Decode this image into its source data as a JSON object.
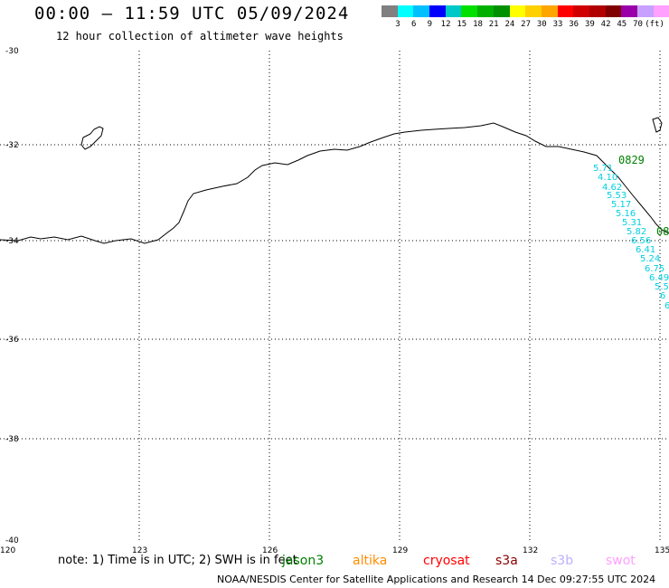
{
  "header": {
    "title": "00:00 – 11:59 UTC 05/09/2024",
    "subtitle": "12 hour collection of altimeter wave heights"
  },
  "colorbar": {
    "colors": [
      "#808080",
      "#00ffff",
      "#00bfff",
      "#0000ff",
      "#00c8c8",
      "#00e000",
      "#00b000",
      "#009000",
      "#ffff00",
      "#ffd000",
      "#ffa500",
      "#ff0000",
      "#d00000",
      "#b00000",
      "#800000",
      "#9900aa",
      "#c8a0ff",
      "#ffa0ff",
      "#000000"
    ],
    "labels": [
      "3",
      "6",
      "9",
      "12",
      "15",
      "18",
      "21",
      "24",
      "27",
      "30",
      "33",
      "36",
      "39",
      "42",
      "45",
      "70",
      "(ft)"
    ]
  },
  "axes": {
    "y_ticks": [
      "-30",
      "-32",
      "-34",
      "-36",
      "-38",
      "-40"
    ],
    "x_ticks": [
      "120",
      "123",
      "126",
      "129",
      "132",
      "135"
    ]
  },
  "track": {
    "time_labels": [
      "0829",
      "08"
    ],
    "values": [
      "5.71",
      "4.10",
      "4.62",
      "5.53",
      "5.17",
      "5.16",
      "5.31",
      "5.82",
      "6.56",
      "6.41",
      "5.24",
      "6.75",
      "6.49",
      "5.5",
      "6",
      "6"
    ]
  },
  "note": "note: 1) Time is in UTC; 2) SWH is in feet",
  "satellites": [
    {
      "name": "jason3",
      "color": "#008000"
    },
    {
      "name": "altika",
      "color": "#ff8c00"
    },
    {
      "name": "cryosat",
      "color": "#ff0000"
    },
    {
      "name": "s3a",
      "color": "#8b0000"
    },
    {
      "name": "s3b",
      "color": "#c0b0ff"
    },
    {
      "name": "swot",
      "color": "#ffa0ff"
    }
  ],
  "footer": "NOAA/NESDIS Center for Satellite Applications and Research    14 Dec 09:27:55 UTC 2024"
}
